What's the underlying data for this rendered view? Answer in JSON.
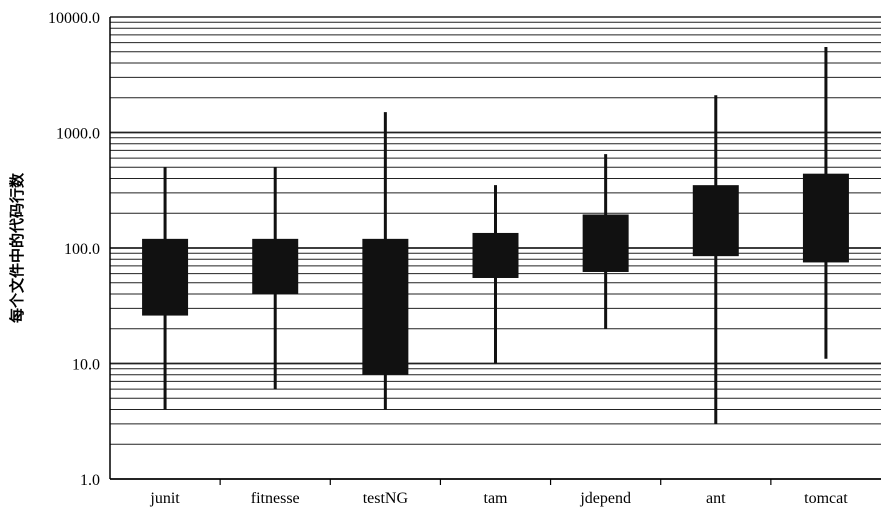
{
  "chart_data": {
    "type": "boxplot",
    "title": "",
    "xlabel": "",
    "ylabel": "每个文件中的代码行数",
    "yscale": "log",
    "ylim": [
      1,
      10000
    ],
    "yticks": [
      {
        "value": 1,
        "label": "1.0"
      },
      {
        "value": 10,
        "label": "10.0"
      },
      {
        "value": 100,
        "label": "100.0"
      },
      {
        "value": 1000,
        "label": "1000.0"
      },
      {
        "value": 10000,
        "label": "10000.0"
      }
    ],
    "grid": true,
    "categories": [
      "junit",
      "fitnesse",
      "testNG",
      "tam",
      "jdepend",
      "ant",
      "tomcat"
    ],
    "series": [
      {
        "boxes": [
          {
            "min": 4,
            "q1": 26,
            "q3": 120,
            "max": 500
          },
          {
            "min": 6,
            "q1": 40,
            "q3": 120,
            "max": 500
          },
          {
            "min": 4,
            "q1": 8,
            "q3": 120,
            "max": 1500
          },
          {
            "min": 10,
            "q1": 55,
            "q3": 135,
            "max": 350
          },
          {
            "min": 20,
            "q1": 62,
            "q3": 195,
            "max": 650
          },
          {
            "min": 3,
            "q1": 85,
            "q3": 350,
            "max": 2100
          },
          {
            "min": 11,
            "q1": 75,
            "q3": 440,
            "max": 5500
          }
        ]
      }
    ],
    "colors": {
      "box": "#111111",
      "whisker": "#111111",
      "grid": "#222222",
      "axis": "#000000"
    }
  }
}
